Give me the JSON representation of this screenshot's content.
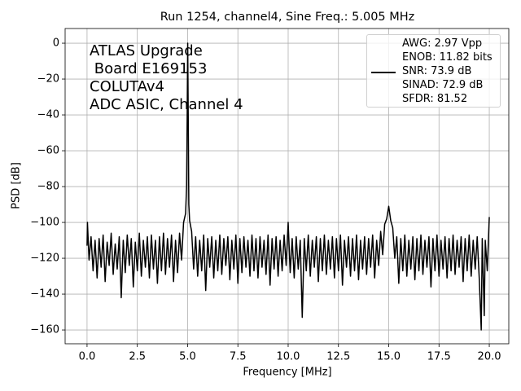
{
  "chart_data": {
    "type": "line",
    "title": "Run 1254, channel4, Sine Freq.: 5.005 MHz",
    "xlabel": "Frequency [MHz]",
    "ylabel": "PSD [dB]",
    "annotation": "ATLAS Upgrade\n Board E169153\nCOLUTAv4\nADC ASIC, Channel 4",
    "grid": true,
    "legend": "upper right",
    "xlim": [
      -1.09,
      20.97
    ],
    "ylim": [
      -167.7,
      8.2
    ],
    "xticks": [
      {
        "value": 0,
        "label": "0.0"
      },
      2.5,
      {
        "value": 5,
        "label": "5.0"
      },
      7.5,
      {
        "value": 10,
        "label": "10.0"
      },
      12.5,
      {
        "value": 15,
        "label": "15.0"
      },
      17.5,
      {
        "value": 20,
        "label": "20.0"
      }
    ],
    "yticks": [
      0,
      {
        "value": -20,
        "label": "−20"
      },
      {
        "value": -40,
        "label": "−40"
      },
      {
        "value": -60,
        "label": "−60"
      },
      {
        "value": -80,
        "label": "−80"
      },
      {
        "value": -100,
        "label": "−100"
      },
      {
        "value": -120,
        "label": "−120"
      },
      {
        "value": -140,
        "label": "−140"
      },
      {
        "value": -160,
        "label": "−160"
      }
    ],
    "x": [
      0,
      0.02,
      0.1,
      0.2,
      0.3,
      0.4,
      0.5,
      0.6,
      0.7,
      0.8,
      0.9,
      1.0,
      1.1,
      1.2,
      1.3,
      1.4,
      1.5,
      1.6,
      1.7,
      1.8,
      1.9,
      2.0,
      2.1,
      2.2,
      2.3,
      2.4,
      2.5,
      2.6,
      2.7,
      2.8,
      2.9,
      3.0,
      3.1,
      3.2,
      3.3,
      3.4,
      3.5,
      3.6,
      3.7,
      3.8,
      3.9,
      4.0,
      4.1,
      4.2,
      4.3,
      4.4,
      4.5,
      4.6,
      4.7,
      4.8,
      4.9,
      4.95,
      4.98,
      5.005,
      5.03,
      5.06,
      5.1,
      5.2,
      5.3,
      5.4,
      5.5,
      5.6,
      5.7,
      5.8,
      5.9,
      6.0,
      6.1,
      6.2,
      6.3,
      6.4,
      6.5,
      6.6,
      6.7,
      6.8,
      6.9,
      7.0,
      7.1,
      7.2,
      7.3,
      7.4,
      7.5,
      7.6,
      7.7,
      7.8,
      7.9,
      8.0,
      8.1,
      8.2,
      8.3,
      8.4,
      8.5,
      8.6,
      8.7,
      8.8,
      8.9,
      9.0,
      9.1,
      9.2,
      9.3,
      9.4,
      9.5,
      9.6,
      9.7,
      9.8,
      9.9,
      10.0,
      10.1,
      10.2,
      10.3,
      10.4,
      10.5,
      10.6,
      10.7,
      10.8,
      10.9,
      11.0,
      11.1,
      11.2,
      11.3,
      11.4,
      11.5,
      11.6,
      11.7,
      11.8,
      11.9,
      12.0,
      12.1,
      12.2,
      12.3,
      12.4,
      12.5,
      12.6,
      12.7,
      12.8,
      12.9,
      13.0,
      13.1,
      13.2,
      13.3,
      13.4,
      13.5,
      13.6,
      13.7,
      13.8,
      13.9,
      14.0,
      14.1,
      14.2,
      14.3,
      14.4,
      14.5,
      14.6,
      14.7,
      14.8,
      14.9,
      15.0,
      15.1,
      15.2,
      15.3,
      15.4,
      15.5,
      15.6,
      15.7,
      15.8,
      15.9,
      16.0,
      16.1,
      16.2,
      16.3,
      16.4,
      16.5,
      16.6,
      16.7,
      16.8,
      16.9,
      17.0,
      17.1,
      17.2,
      17.3,
      17.4,
      17.5,
      17.6,
      17.7,
      17.8,
      17.9,
      18.0,
      18.1,
      18.2,
      18.3,
      18.4,
      18.5,
      18.6,
      18.7,
      18.8,
      18.9,
      19.0,
      19.1,
      19.2,
      19.3,
      19.4,
      19.5,
      19.6,
      19.65,
      19.75,
      19.8,
      19.9,
      20.0
    ],
    "series": [
      {
        "name": "AWG: 2.97 Vpp\nENOB: 11.82 bits\nSNR: 73.9 dB\nSINAD: 72.9 dB\nSFDR: 81.52",
        "color": "#000000",
        "values": [
          -113,
          -100,
          -121,
          -108,
          -127,
          -110,
          -131,
          -109,
          -125,
          -107,
          -133,
          -111,
          -124,
          -106,
          -129,
          -112,
          -126,
          -108,
          -142,
          -110,
          -128,
          -107,
          -124,
          -109,
          -136,
          -111,
          -127,
          -106,
          -130,
          -110,
          -125,
          -108,
          -131,
          -107,
          -126,
          -110,
          -134,
          -108,
          -127,
          -106,
          -129,
          -109,
          -125,
          -107,
          -133,
          -110,
          -128,
          -106,
          -121,
          -100,
          -95,
          -80,
          -40,
          0,
          -40,
          -90,
          -99,
          -105,
          -126,
          -108,
          -130,
          -110,
          -127,
          -107,
          -138,
          -109,
          -125,
          -108,
          -131,
          -110,
          -127,
          -107,
          -129,
          -109,
          -124,
          -108,
          -132,
          -110,
          -126,
          -107,
          -134,
          -109,
          -128,
          -108,
          -125,
          -110,
          -130,
          -107,
          -127,
          -109,
          -131,
          -108,
          -125,
          -110,
          -129,
          -107,
          -135,
          -109,
          -126,
          -108,
          -130,
          -110,
          -127,
          -107,
          -124,
          -100,
          -128,
          -109,
          -131,
          -108,
          -126,
          -110,
          -153,
          -109,
          -127,
          -107,
          -130,
          -110,
          -125,
          -108,
          -133,
          -109,
          -127,
          -107,
          -129,
          -110,
          -126,
          -108,
          -131,
          -109,
          -127,
          -107,
          -135,
          -110,
          -125,
          -108,
          -130,
          -109,
          -127,
          -107,
          -132,
          -110,
          -126,
          -108,
          -129,
          -109,
          -125,
          -107,
          -131,
          -110,
          -124,
          -105,
          -118,
          -101,
          -98,
          -91,
          -99,
          -103,
          -120,
          -108,
          -134,
          -109,
          -127,
          -107,
          -130,
          -110,
          -126,
          -108,
          -132,
          -109,
          -127,
          -107,
          -129,
          -110,
          -125,
          -108,
          -136,
          -109,
          -127,
          -107,
          -130,
          -110,
          -126,
          -108,
          -131,
          -109,
          -127,
          -107,
          -129,
          -110,
          -125,
          -108,
          -133,
          -109,
          -127,
          -107,
          -130,
          -110,
          -126,
          -108,
          -131,
          -160,
          -109,
          -152,
          -110,
          -127,
          -97
        ]
      }
    ]
  }
}
